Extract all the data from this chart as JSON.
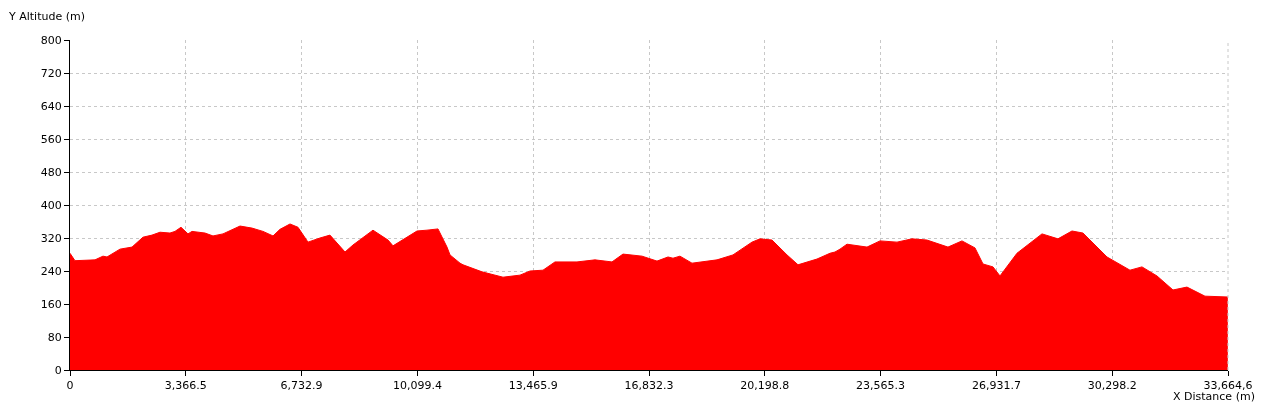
{
  "chart_data": {
    "type": "area",
    "xlabel": "X Distance (m)",
    "ylabel": "Y Altitude (m)",
    "x": [
      0,
      145,
      727,
      959,
      1076,
      1454,
      1803,
      2122,
      2384,
      2616,
      2907,
      3052,
      3227,
      3430,
      3547,
      3925,
      4157,
      4448,
      4942,
      5291,
      5611,
      5902,
      6105,
      6396,
      6628,
      6919,
      7267,
      7558,
      7995,
      8227,
      8808,
      9245,
      9390,
      10088,
      10378,
      10698,
      10960,
      11047,
      11338,
      11425,
      11977,
      12588,
      13082,
      13373,
      13751,
      14099,
      14739,
      15262,
      15756,
      16076,
      16629,
      17065,
      17385,
      17530,
      17733,
      18082,
      18809,
      19274,
      19826,
      20059,
      20408,
      20844,
      21164,
      21716,
      22094,
      22239,
      22385,
      22588,
      23170,
      23548,
      24042,
      24478,
      24914,
      25524,
      25931,
      26309,
      26542,
      26832,
      27036,
      27530,
      28257,
      28722,
      29129,
      29449,
      30147,
      30815,
      31164,
      31600,
      32065,
      32472,
      32995,
      33660
    ],
    "series": [
      {
        "color": "#ff0000",
        "values": [
          283,
          265,
          267,
          276,
          274,
          293,
          298,
          322,
          327,
          334,
          332,
          336,
          346,
          330,
          336,
          332,
          325,
          330,
          349,
          344,
          336,
          325,
          341,
          354,
          346,
          310,
          320,
          327,
          286,
          303,
          339,
          315,
          301,
          337,
          339,
          342,
          298,
          279,
          259,
          255,
          238,
          225,
          230,
          240,
          242,
          262,
          262,
          267,
          262,
          281,
          276,
          264,
          274,
          271,
          276,
          259,
          267,
          279,
          310,
          318,
          315,
          279,
          255,
          269,
          283,
          286,
          293,
          305,
          298,
          313,
          310,
          318,
          315,
          298,
          313,
          296,
          257,
          250,
          228,
          283,
          330,
          318,
          337,
          332,
          274,
          242,
          250,
          228,
          194,
          201,
          179,
          177
        ]
      }
    ],
    "xlim": [
      0,
      33664.6
    ],
    "ylim": [
      0,
      800
    ],
    "xticks": [
      0,
      {
        "value": 3366.5,
        "label": "3,366.5"
      },
      {
        "value": 6732.9,
        "label": "6,732.9"
      },
      {
        "value": 10099.4,
        "label": "10,099.4"
      },
      {
        "value": 13465.9,
        "label": "13,465.9"
      },
      {
        "value": 16832.3,
        "label": "16,832.3"
      },
      {
        "value": 20198.8,
        "label": "20,198.8"
      },
      {
        "value": 23565.3,
        "label": "23,565.3"
      },
      {
        "value": 26931.7,
        "label": "26,931.7"
      },
      {
        "value": 30298.2,
        "label": "30,298.2"
      },
      {
        "value": 33664.6,
        "label": "33,664,6"
      }
    ],
    "yticks": [
      0,
      80,
      160,
      240,
      320,
      400,
      480,
      560,
      640,
      720,
      800
    ],
    "grid": true
  }
}
